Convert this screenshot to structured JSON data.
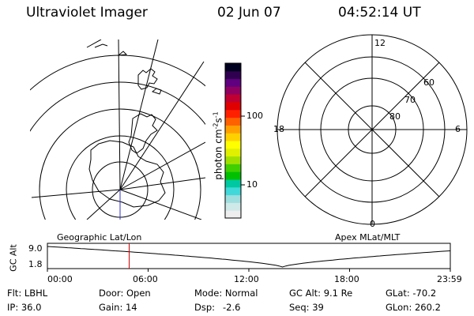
{
  "header": {
    "title": "Ultraviolet Imager",
    "date": "02 Jun 07",
    "time": "04:52:14 UT"
  },
  "colorbar": {
    "label_main": "photon cm",
    "label_exp1": "-2",
    "label_s": "s",
    "label_exp2": "-1",
    "ticks": [
      "100",
      "10"
    ],
    "colors": [
      "#eeeeee",
      "#cfe8e8",
      "#9fdede",
      "#40d8d8",
      "#00c8a0",
      "#00c000",
      "#40d000",
      "#a0e000",
      "#e0f000",
      "#ffff00",
      "#ffd000",
      "#ffa000",
      "#ff6000",
      "#ff2000",
      "#e00000",
      "#c00030",
      "#900060",
      "#600080",
      "#300050",
      "#000020"
    ]
  },
  "right_polar": {
    "mlt_labels": {
      "top": "12",
      "left": "18",
      "right": "6",
      "bottom": "0"
    },
    "lat_labels": [
      "60",
      "70",
      "80"
    ]
  },
  "timeline": {
    "y_axis_label": "GC Alt",
    "y_ticks": [
      "9.0",
      "1.8"
    ],
    "left_title": "Geographic Lat/Lon",
    "right_title": "Apex MLat/MLT",
    "x_ticks": [
      "00:00",
      "06:00",
      "12:00",
      "18:00",
      "23:59"
    ],
    "current_hour": 4.87,
    "marker_color": "#cc0000"
  },
  "status": {
    "filter": "Flt: LBHL",
    "door": "Door: Open",
    "mode": "Mode: Normal",
    "gc_alt": "GC Alt: 9.1 Re",
    "glat": "GLat: -70.2",
    "ip": "IP: 36.0",
    "gain": "Gain: 14",
    "dsp_label": "Dsp:",
    "dsp_value": "-2.6",
    "seq": "Seq: 39",
    "glon": "GLon: 260.2"
  }
}
